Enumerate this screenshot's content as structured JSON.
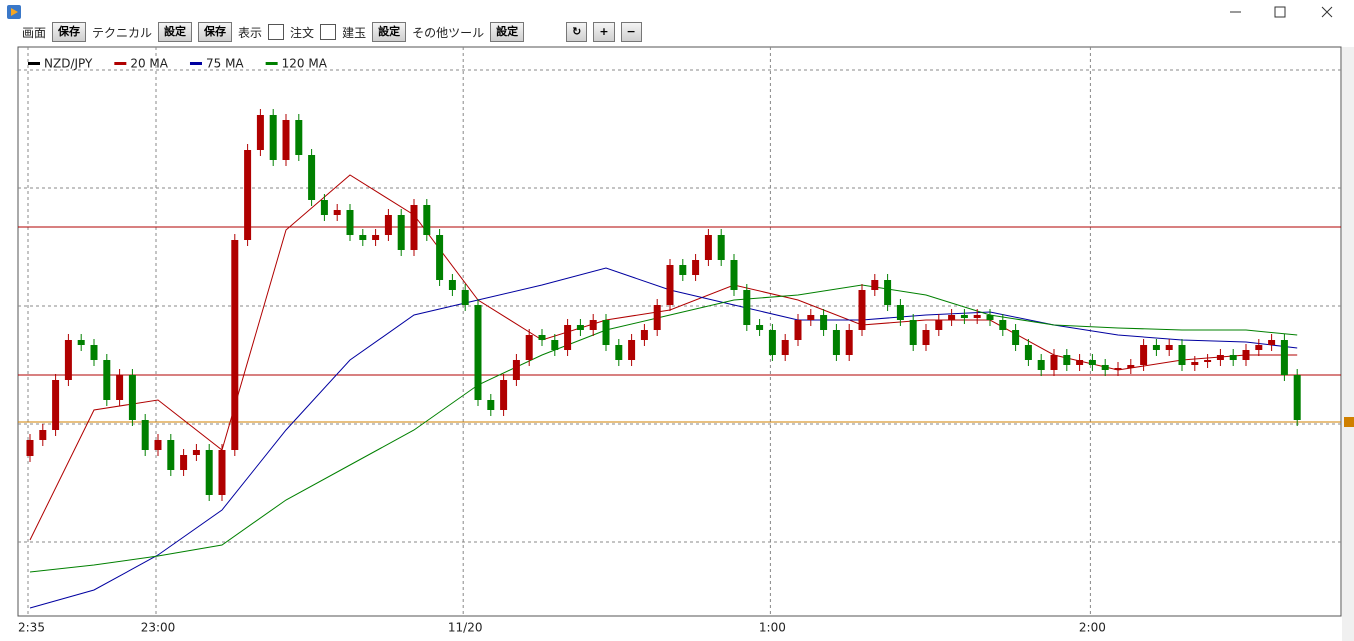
{
  "toolbar": {
    "items": [
      "画面",
      "保存",
      "テクニカル",
      "設定",
      "保存",
      "表示",
      "注文",
      "建玉",
      "設定",
      "その他ツール",
      "設定"
    ]
  },
  "chart_data": {
    "type": "candlestick",
    "categories": [
      "2:35",
      null,
      null,
      null,
      null,
      null,
      null,
      null,
      null,
      null,
      "23:00",
      null,
      null,
      null,
      null,
      null,
      null,
      null,
      null,
      null,
      null,
      null,
      null,
      null,
      null,
      null,
      null,
      null,
      null,
      null,
      null,
      null,
      null,
      null,
      "11/20",
      null,
      null,
      null,
      null,
      null,
      null,
      null,
      null,
      null,
      null,
      null,
      null,
      null,
      null,
      null,
      null,
      null,
      null,
      null,
      null,
      null,
      null,
      null,
      "1:00",
      null,
      null,
      null,
      null,
      null,
      null,
      null,
      null,
      null,
      null,
      null,
      null,
      null,
      null,
      null,
      null,
      null,
      null,
      null,
      null,
      null,
      null,
      null,
      null,
      "2:00",
      null,
      null,
      null,
      null,
      null,
      null,
      null,
      null,
      null,
      null,
      null,
      null,
      null,
      null,
      null,
      null
    ],
    "ylim": [
      0,
      569
    ],
    "yticks": [
      74,
      192,
      310,
      428,
      546
    ],
    "grid": true,
    "hlines": [
      {
        "value": 389,
        "color": "#b00000"
      },
      {
        "value": 241,
        "color": "#b00000"
      },
      {
        "value": 194,
        "color": "#d08000"
      }
    ],
    "series": [
      {
        "name": "NZD/JPY",
        "color": "#000000",
        "up_color": "#b00000",
        "down_color": "#008000",
        "open": [
          160,
          176,
          186,
          236,
          276,
          271,
          256,
          216,
          241,
          196,
          166,
          176,
          146,
          161,
          166,
          121,
          166,
          376,
          466,
          501,
          456,
          496,
          461,
          416,
          401,
          406,
          381,
          376,
          381,
          401,
          366,
          411,
          381,
          336,
          326,
          311,
          216,
          206,
          236,
          256,
          281,
          276,
          266,
          291,
          286,
          296,
          271,
          256,
          276,
          286,
          311,
          351,
          341,
          356,
          381,
          356,
          326,
          291,
          286,
          261,
          276,
          296,
          301,
          286,
          261,
          286,
          326,
          336,
          311,
          296,
          271,
          286,
          296,
          301,
          298,
          301,
          296,
          286,
          271,
          256,
          246,
          261,
          251,
          256,
          251,
          246,
          248,
          251,
          271,
          266,
          271,
          251,
          254,
          256,
          261,
          256,
          266,
          271,
          276,
          241
        ],
        "high": [
          182,
          192,
          242,
          282,
          282,
          277,
          262,
          247,
          247,
          202,
          182,
          182,
          167,
          172,
          172,
          172,
          382,
          472,
          507,
          507,
          502,
          502,
          467,
          422,
          412,
          412,
          387,
          387,
          407,
          407,
          417,
          417,
          387,
          342,
          332,
          317,
          222,
          242,
          262,
          287,
          287,
          282,
          297,
          297,
          302,
          302,
          277,
          282,
          292,
          317,
          357,
          357,
          362,
          387,
          387,
          362,
          332,
          297,
          292,
          282,
          302,
          307,
          307,
          292,
          292,
          332,
          342,
          342,
          317,
          302,
          292,
          302,
          307,
          307,
          307,
          307,
          302,
          292,
          277,
          262,
          267,
          267,
          262,
          262,
          257,
          254,
          257,
          277,
          277,
          277,
          277,
          260,
          262,
          267,
          267,
          272,
          277,
          282,
          282,
          247
        ],
        "low": [
          154,
          170,
          180,
          230,
          265,
          250,
          210,
          210,
          190,
          160,
          160,
          140,
          140,
          155,
          115,
          115,
          160,
          370,
          460,
          450,
          450,
          455,
          410,
          395,
          395,
          375,
          370,
          370,
          375,
          360,
          360,
          375,
          330,
          320,
          305,
          210,
          200,
          200,
          230,
          250,
          270,
          260,
          260,
          280,
          280,
          265,
          250,
          250,
          270,
          280,
          305,
          335,
          335,
          350,
          350,
          320,
          285,
          280,
          255,
          255,
          270,
          290,
          280,
          255,
          255,
          280,
          320,
          305,
          290,
          265,
          265,
          280,
          290,
          292,
          292,
          290,
          280,
          265,
          250,
          240,
          240,
          245,
          245,
          245,
          240,
          240,
          242,
          245,
          260,
          260,
          245,
          245,
          248,
          250,
          250,
          250,
          260,
          265,
          235,
          190
        ],
        "close": [
          176,
          186,
          236,
          276,
          271,
          256,
          216,
          241,
          196,
          166,
          176,
          146,
          161,
          166,
          121,
          166,
          376,
          466,
          501,
          456,
          496,
          461,
          416,
          401,
          406,
          381,
          376,
          381,
          401,
          366,
          411,
          381,
          336,
          326,
          311,
          216,
          206,
          236,
          256,
          281,
          276,
          266,
          291,
          286,
          296,
          271,
          256,
          276,
          286,
          311,
          351,
          341,
          356,
          381,
          356,
          326,
          291,
          286,
          261,
          276,
          296,
          301,
          286,
          261,
          286,
          326,
          336,
          311,
          296,
          271,
          286,
          296,
          301,
          298,
          301,
          296,
          286,
          271,
          256,
          246,
          261,
          251,
          256,
          251,
          246,
          248,
          251,
          271,
          266,
          271,
          251,
          254,
          256,
          261,
          256,
          266,
          271,
          276,
          241,
          196
        ]
      },
      {
        "name": "20 MA",
        "color": "#b00000",
        "x": [
          0,
          5,
          10,
          15,
          20,
          25,
          30,
          35,
          40,
          45,
          50,
          55,
          60,
          65,
          70,
          75,
          80,
          85,
          90,
          95,
          99
        ],
        "values": [
          76,
          206,
          216,
          166,
          386,
          441,
          401,
          316,
          276,
          296,
          306,
          331,
          316,
          291,
          296,
          296,
          261,
          246,
          256,
          261,
          261
        ]
      },
      {
        "name": "75 MA",
        "color": "#0000a0",
        "x": [
          0,
          5,
          10,
          15,
          20,
          25,
          30,
          35,
          40,
          45,
          50,
          55,
          60,
          65,
          70,
          75,
          80,
          85,
          90,
          95,
          99
        ],
        "values": [
          8,
          26,
          61,
          106,
          186,
          256,
          301,
          316,
          331,
          348,
          326,
          311,
          296,
          296,
          301,
          304,
          291,
          281,
          276,
          274,
          268
        ]
      },
      {
        "name": "120 MA",
        "color": "#008000",
        "x": [
          0,
          5,
          10,
          15,
          20,
          25,
          30,
          35,
          40,
          45,
          50,
          55,
          60,
          65,
          70,
          75,
          80,
          85,
          90,
          95,
          99
        ],
        "values": [
          44,
          51,
          60,
          71,
          116,
          151,
          186,
          231,
          261,
          286,
          301,
          316,
          321,
          331,
          321,
          301,
          291,
          288,
          286,
          286,
          281
        ]
      }
    ]
  }
}
